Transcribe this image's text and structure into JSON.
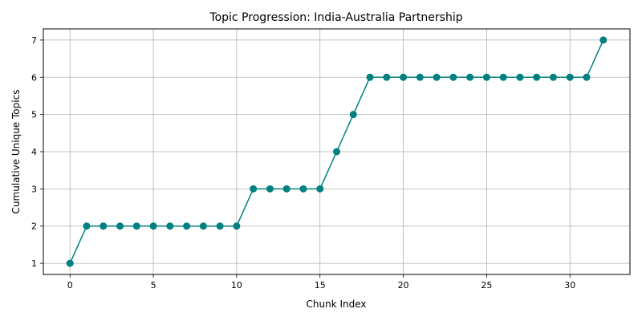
{
  "chart_data": {
    "type": "line",
    "title": "Topic Progression: India-Australia Partnership",
    "xlabel": "Chunk Index",
    "ylabel": "Cumulative Unique Topics",
    "xlim": [
      -1.6,
      33.6
    ],
    "ylim": [
      0.7,
      7.3
    ],
    "xticks": [
      0,
      5,
      10,
      15,
      20,
      25,
      30
    ],
    "yticks": [
      1,
      2,
      3,
      4,
      5,
      6,
      7
    ],
    "grid": true,
    "line_color": "#008080",
    "marker": "circle",
    "x": [
      0,
      1,
      2,
      3,
      4,
      5,
      6,
      7,
      8,
      9,
      10,
      11,
      12,
      13,
      14,
      15,
      16,
      17,
      18,
      19,
      20,
      21,
      22,
      23,
      24,
      25,
      26,
      27,
      28,
      29,
      30,
      31,
      32
    ],
    "y": [
      1,
      2,
      2,
      2,
      2,
      2,
      2,
      2,
      2,
      2,
      2,
      3,
      3,
      3,
      3,
      3,
      4,
      5,
      6,
      6,
      6,
      6,
      6,
      6,
      6,
      6,
      6,
      6,
      6,
      6,
      6,
      6,
      7
    ]
  }
}
